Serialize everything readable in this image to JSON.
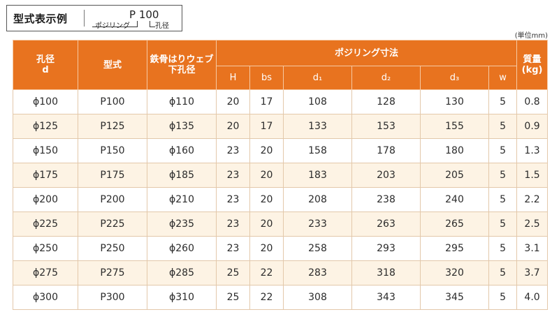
{
  "example": {
    "title": "型式表示例",
    "code": "P 100",
    "label_name": "ポジリング",
    "label_hole": "孔径"
  },
  "unit_note": "(単位mm)",
  "table": {
    "headers": {
      "hole": "孔径\nd",
      "model": "型式",
      "web": "鉄骨はりウェブ\n下孔径",
      "dims_group": "ポジリング寸法",
      "H": "H",
      "bs": "bs",
      "d1": "d₁",
      "d2": "d₂",
      "d3": "d₃",
      "w": "w",
      "mass": "質量\n(kg)"
    },
    "rows": [
      {
        "hole": "ϕ100",
        "model": "P100",
        "web": "ϕ110",
        "H": "20",
        "bs": "17",
        "d1": "108",
        "d2": "128",
        "d3": "130",
        "w": "5",
        "mass": "0.8"
      },
      {
        "hole": "ϕ125",
        "model": "P125",
        "web": "ϕ135",
        "H": "20",
        "bs": "17",
        "d1": "133",
        "d2": "153",
        "d3": "155",
        "w": "5",
        "mass": "0.9"
      },
      {
        "hole": "ϕ150",
        "model": "P150",
        "web": "ϕ160",
        "H": "23",
        "bs": "20",
        "d1": "158",
        "d2": "178",
        "d3": "180",
        "w": "5",
        "mass": "1.3"
      },
      {
        "hole": "ϕ175",
        "model": "P175",
        "web": "ϕ185",
        "H": "23",
        "bs": "20",
        "d1": "183",
        "d2": "203",
        "d3": "205",
        "w": "5",
        "mass": "1.5"
      },
      {
        "hole": "ϕ200",
        "model": "P200",
        "web": "ϕ210",
        "H": "23",
        "bs": "20",
        "d1": "208",
        "d2": "238",
        "d3": "240",
        "w": "5",
        "mass": "2.2"
      },
      {
        "hole": "ϕ225",
        "model": "P225",
        "web": "ϕ235",
        "H": "23",
        "bs": "20",
        "d1": "233",
        "d2": "263",
        "d3": "265",
        "w": "5",
        "mass": "2.5"
      },
      {
        "hole": "ϕ250",
        "model": "P250",
        "web": "ϕ260",
        "H": "23",
        "bs": "20",
        "d1": "258",
        "d2": "293",
        "d3": "295",
        "w": "5",
        "mass": "3.1"
      },
      {
        "hole": "ϕ275",
        "model": "P275",
        "web": "ϕ285",
        "H": "25",
        "bs": "22",
        "d1": "283",
        "d2": "318",
        "d3": "320",
        "w": "5",
        "mass": "3.7"
      },
      {
        "hole": "ϕ300",
        "model": "P300",
        "web": "ϕ310",
        "H": "25",
        "bs": "22",
        "d1": "308",
        "d2": "343",
        "d3": "345",
        "w": "5",
        "mass": "4.0"
      }
    ]
  },
  "colors": {
    "header_bg": "#e8731f",
    "header_text": "#ffffff",
    "row_alt_bg": "#fdf3e4",
    "grid": "#e3c8aa"
  }
}
